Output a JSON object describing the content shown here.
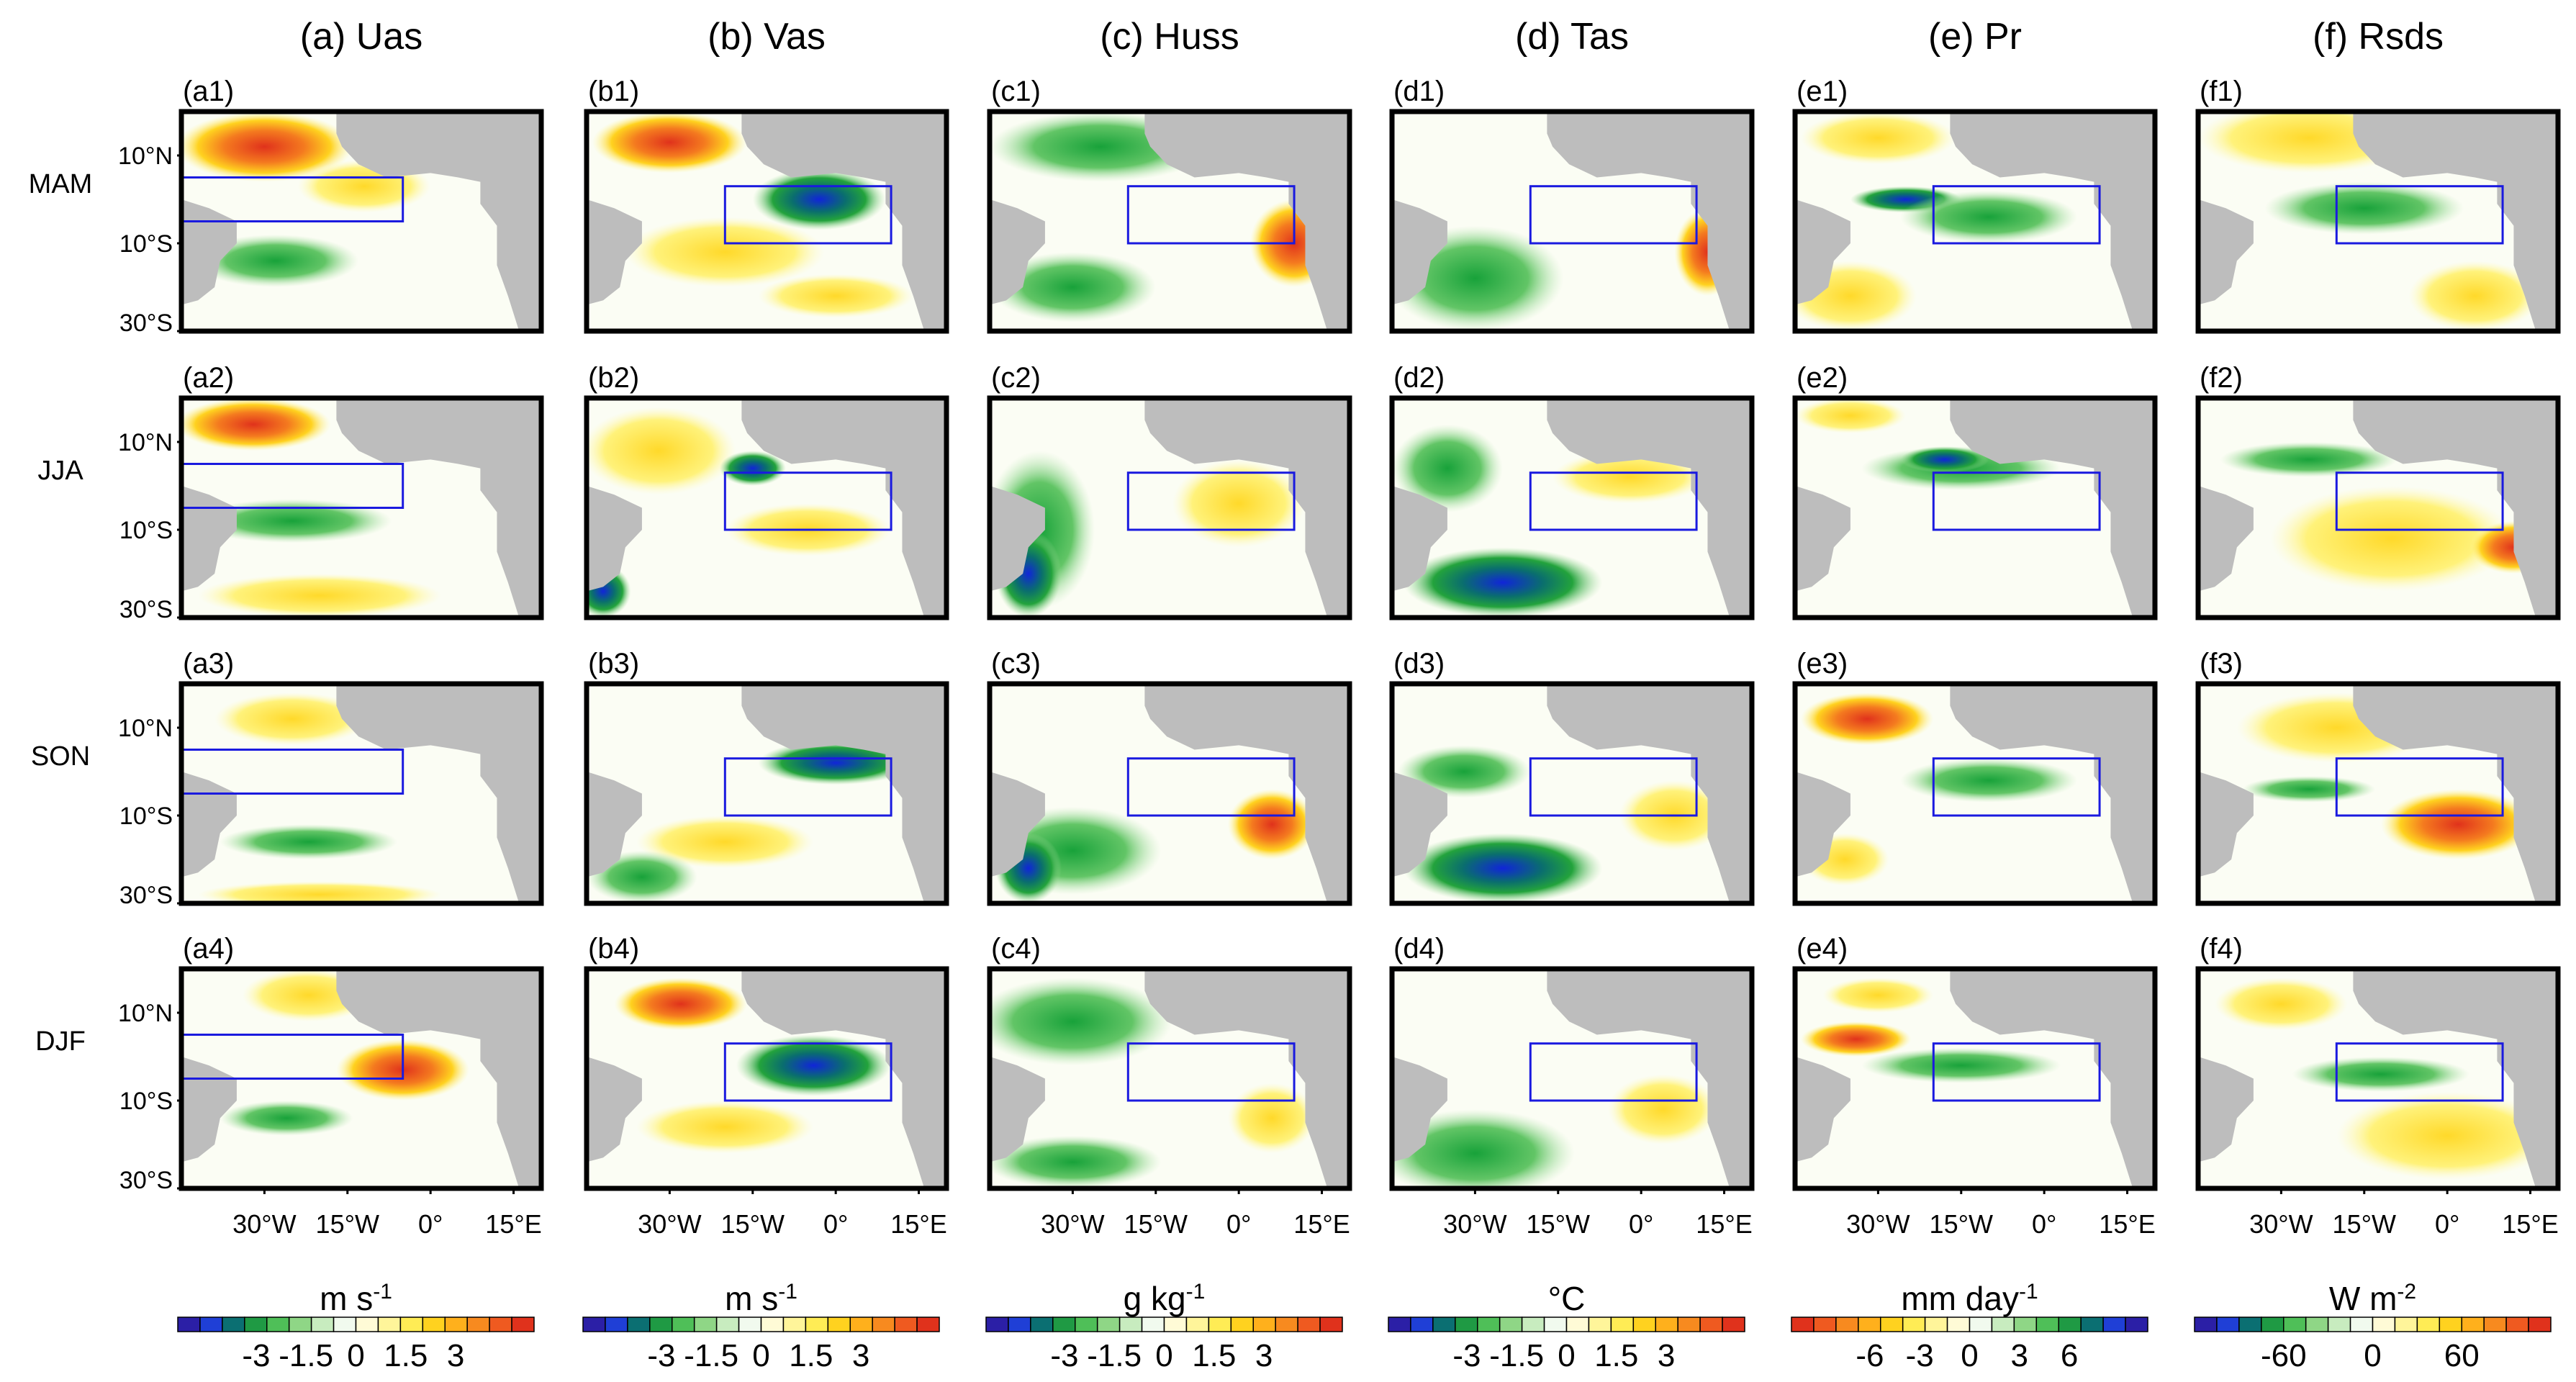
{
  "chart_data": {
    "type": "heatmap",
    "description_free": true,
    "columns": [
      {
        "id": "a",
        "title": "(a) Uas",
        "unit": "m s",
        "unit_sup": "-1",
        "ticks": [
          "-3",
          "-1.5",
          "0",
          "1.5",
          "3"
        ],
        "palette": "bwr"
      },
      {
        "id": "b",
        "title": "(b) Vas",
        "unit": "m s",
        "unit_sup": "-1",
        "ticks": [
          "-3",
          "-1.5",
          "0",
          "1.5",
          "3"
        ],
        "palette": "bwr"
      },
      {
        "id": "c",
        "title": "(c) Huss",
        "unit": "g kg",
        "unit_sup": "-1",
        "ticks": [
          "-3",
          "-1.5",
          "0",
          "1.5",
          "3"
        ],
        "palette": "bwr"
      },
      {
        "id": "d",
        "title": "(d) Tas",
        "unit": "°C",
        "unit_sup": "",
        "ticks": [
          "-3",
          "-1.5",
          "0",
          "1.5",
          "3"
        ],
        "palette": "bwr"
      },
      {
        "id": "e",
        "title": "(e) Pr",
        "unit": "mm day",
        "unit_sup": "-1",
        "ticks": [
          "-6",
          "-3",
          "0",
          "3",
          "6"
        ],
        "palette": "rwb"
      },
      {
        "id": "f",
        "title": "(f) Rsds",
        "unit": "W m",
        "unit_sup": "-2",
        "ticks": [
          "-60",
          "0",
          "60"
        ],
        "palette": "bwr"
      }
    ],
    "rows": [
      "MAM",
      "JJA",
      "SON",
      "DJF"
    ],
    "y_ticks": [
      "10°N",
      "10°S",
      "30°S"
    ],
    "x_ticks": [
      "30°W",
      "15°W",
      "0°",
      "15°E"
    ],
    "lat_range": [
      -30,
      20
    ],
    "lon_range": [
      -45,
      20
    ],
    "colorbar_levels": 16
  }
}
